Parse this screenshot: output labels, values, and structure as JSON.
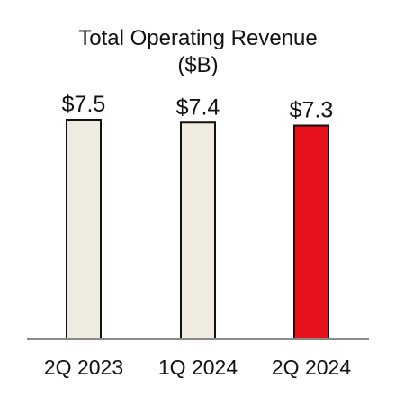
{
  "chart_data": {
    "type": "bar",
    "title": "Total Operating Revenue",
    "subtitle": "($B)",
    "categories": [
      "2Q 2023",
      "1Q 2024",
      "2Q 2024"
    ],
    "values": [
      7.5,
      7.4,
      7.3
    ],
    "value_labels": [
      "$7.5",
      "$7.4",
      "$7.3"
    ],
    "bar_colors": [
      "#f0ebe0",
      "#f0ebe0",
      "#e8101e"
    ],
    "bar_outline_color": "#111111",
    "baseline_color": "#8a8a8a",
    "ylim": [
      0,
      7.5
    ],
    "grid": false
  }
}
